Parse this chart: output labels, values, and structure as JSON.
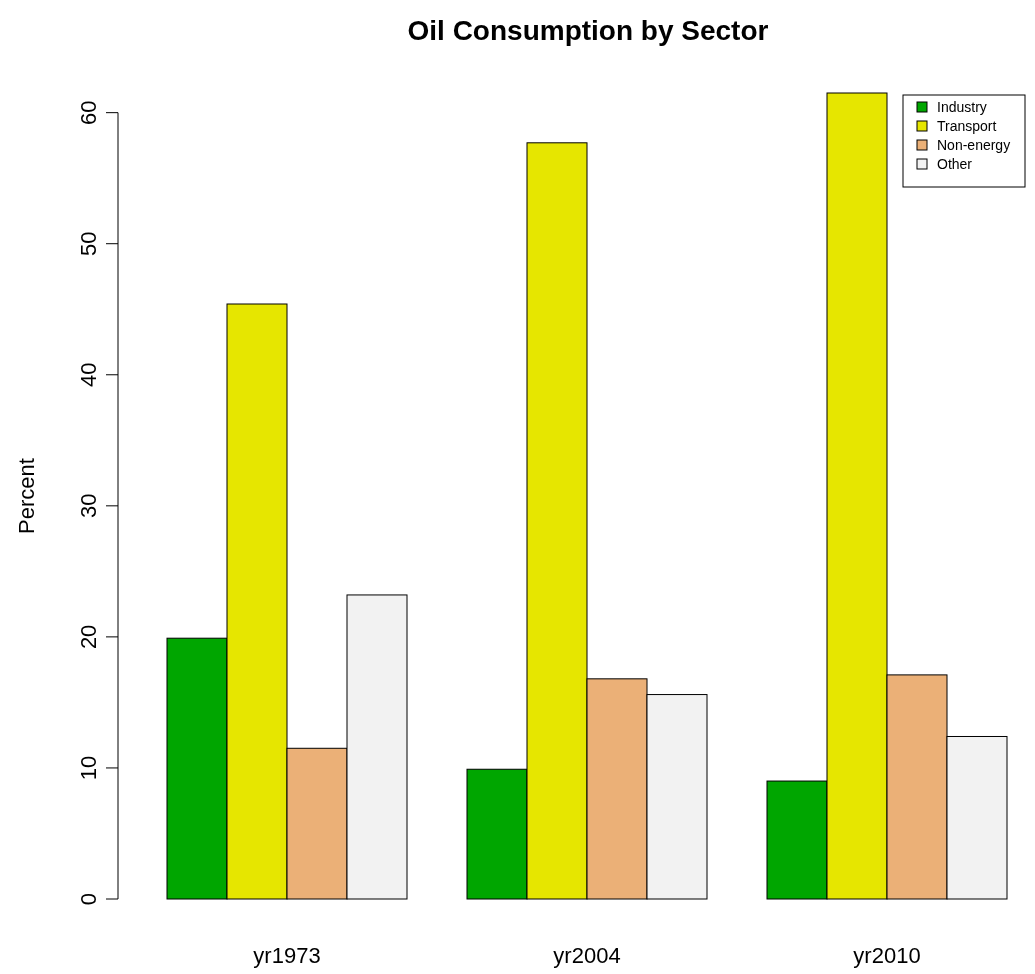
{
  "chart_data": {
    "type": "bar",
    "title": "Oil Consumption by Sector",
    "ylabel": "Percent",
    "categories": [
      "yr1973",
      "yr2004",
      "yr2010"
    ],
    "series": [
      {
        "name": "Industry",
        "color": "#00a600",
        "values": [
          19.9,
          9.9,
          9.0
        ]
      },
      {
        "name": "Transport",
        "color": "#e6e600",
        "values": [
          45.4,
          57.7,
          61.5
        ]
      },
      {
        "name": "Non-energy",
        "color": "#ebb077",
        "values": [
          11.5,
          16.8,
          17.1
        ]
      },
      {
        "name": "Other",
        "color": "#f2f2f2",
        "values": [
          23.2,
          15.6,
          12.4
        ]
      }
    ],
    "ylim": [
      0,
      61.5
    ],
    "yticks": [
      0,
      10,
      20,
      30,
      40,
      50,
      60
    ],
    "grid": false,
    "legend": "top right"
  }
}
